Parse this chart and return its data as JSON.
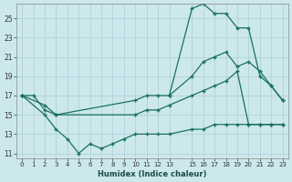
{
  "xlabel": "Humidex (Indice chaleur)",
  "bg_color": "#cce8ec",
  "grid_color": "#aacdd4",
  "line_color": "#1a7060",
  "xlim": [
    -0.5,
    23.5
  ],
  "ylim": [
    10.5,
    26.5
  ],
  "xticks": [
    0,
    1,
    2,
    3,
    4,
    5,
    6,
    7,
    8,
    9,
    10,
    11,
    12,
    13,
    15,
    16,
    17,
    18,
    19,
    20,
    21,
    22,
    23
  ],
  "yticks": [
    11,
    13,
    15,
    17,
    19,
    21,
    23,
    25
  ],
  "line1_x": [
    0,
    1,
    2,
    3,
    10,
    11,
    12,
    13,
    15,
    16,
    17,
    18,
    19,
    20,
    21,
    22,
    23
  ],
  "line1_y": [
    17,
    17,
    15.5,
    15,
    15,
    15.5,
    15.5,
    16,
    17,
    17.5,
    18,
    18.5,
    19.5,
    14,
    14,
    14,
    14
  ],
  "line2_x": [
    0,
    2,
    3,
    10,
    11,
    12,
    13,
    15,
    16,
    17,
    18,
    19,
    20,
    21,
    22,
    23
  ],
  "line2_y": [
    17,
    16,
    15,
    16.5,
    17,
    17,
    17,
    19,
    20.5,
    21,
    21.5,
    20,
    20.5,
    19.5,
    18,
    16.5
  ],
  "line3_x": [
    0,
    2,
    3,
    4,
    5,
    6,
    7,
    8,
    9,
    10,
    11,
    12,
    13,
    15,
    16,
    17,
    18,
    19,
    20,
    21,
    22,
    23
  ],
  "line3_y": [
    17,
    15,
    13.5,
    12.5,
    11,
    12,
    11.5,
    12,
    12.5,
    13,
    13,
    13,
    13,
    13.5,
    13.5,
    14,
    14,
    14,
    14,
    14,
    14,
    14
  ],
  "line4_x": [
    13,
    15,
    16,
    17,
    18,
    19,
    20,
    21,
    22,
    23
  ],
  "line4_y": [
    17,
    26,
    26.5,
    25.5,
    25.5,
    24,
    24,
    19,
    18,
    16.5
  ]
}
